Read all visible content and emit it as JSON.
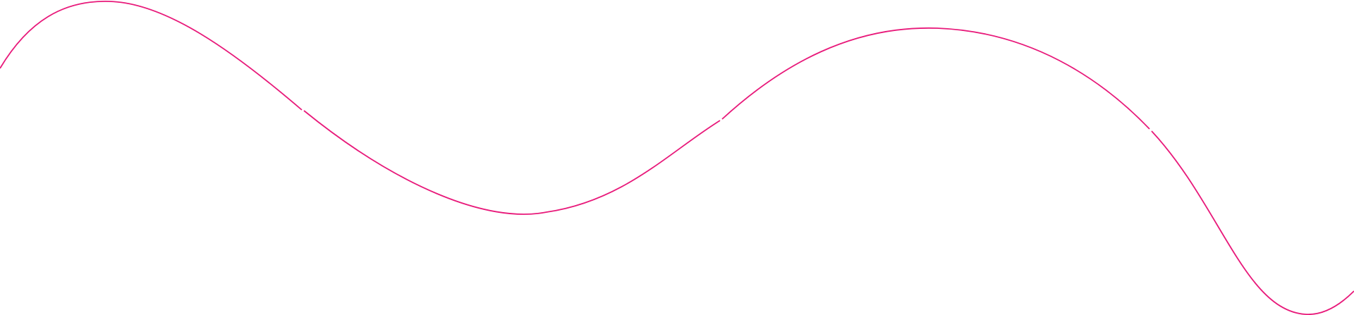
{
  "decoration": {
    "type": "wave-line",
    "segments": 4,
    "stroke_color": "#e8197a",
    "background": "#ffffff"
  }
}
